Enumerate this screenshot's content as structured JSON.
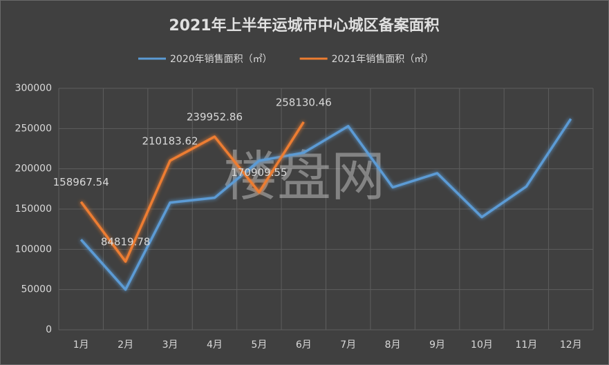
{
  "chart_data": {
    "type": "line",
    "title": "2021年上半年运城市中心城区备案面积",
    "watermark": "楼盘网",
    "categories": [
      "1月",
      "2月",
      "3月",
      "4月",
      "5月",
      "6月",
      "7月",
      "8月",
      "9月",
      "10月",
      "11月",
      "12月"
    ],
    "series": [
      {
        "name": "2020年销售面积（㎡）",
        "color": "#5b9bd5",
        "values": [
          112000,
          50000,
          158000,
          164000,
          210000,
          220000,
          253000,
          177000,
          194500,
          140000,
          178000,
          262000
        ]
      },
      {
        "name": "2021年销售面积（㎡）",
        "color": "#ed7d31",
        "values": [
          158967.54,
          84819.78,
          210183.62,
          239952.86,
          170909.55,
          258130.46,
          null,
          null,
          null,
          null,
          null,
          null
        ],
        "data_labels": true
      }
    ],
    "ylim": [
      0,
      300000
    ],
    "yticks": [
      0,
      50000,
      100000,
      150000,
      200000,
      250000,
      300000
    ],
    "grid": true,
    "legend": "top"
  }
}
